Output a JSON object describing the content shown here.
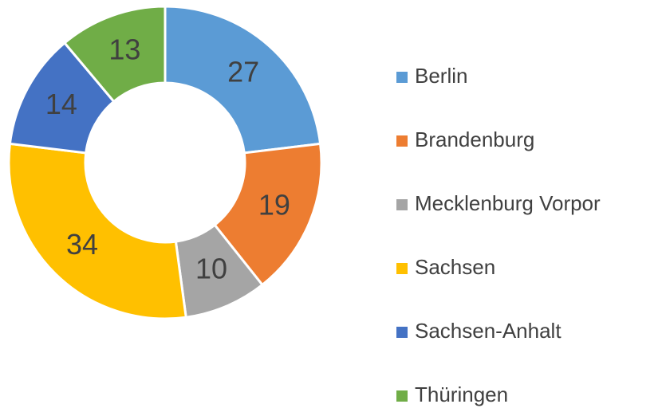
{
  "chart_data": {
    "type": "donut",
    "categories": [
      "Berlin",
      "Brandenburg",
      "Mecklenburg Vorpor",
      "Sachsen",
      "Sachsen-Anhalt",
      "Thüringen"
    ],
    "values": [
      27,
      19,
      10,
      34,
      14,
      13
    ],
    "colors": [
      "#5b9bd5",
      "#ed7d31",
      "#a5a5a5",
      "#ffc000",
      "#4472c4",
      "#70ad47"
    ],
    "legend": "right"
  }
}
